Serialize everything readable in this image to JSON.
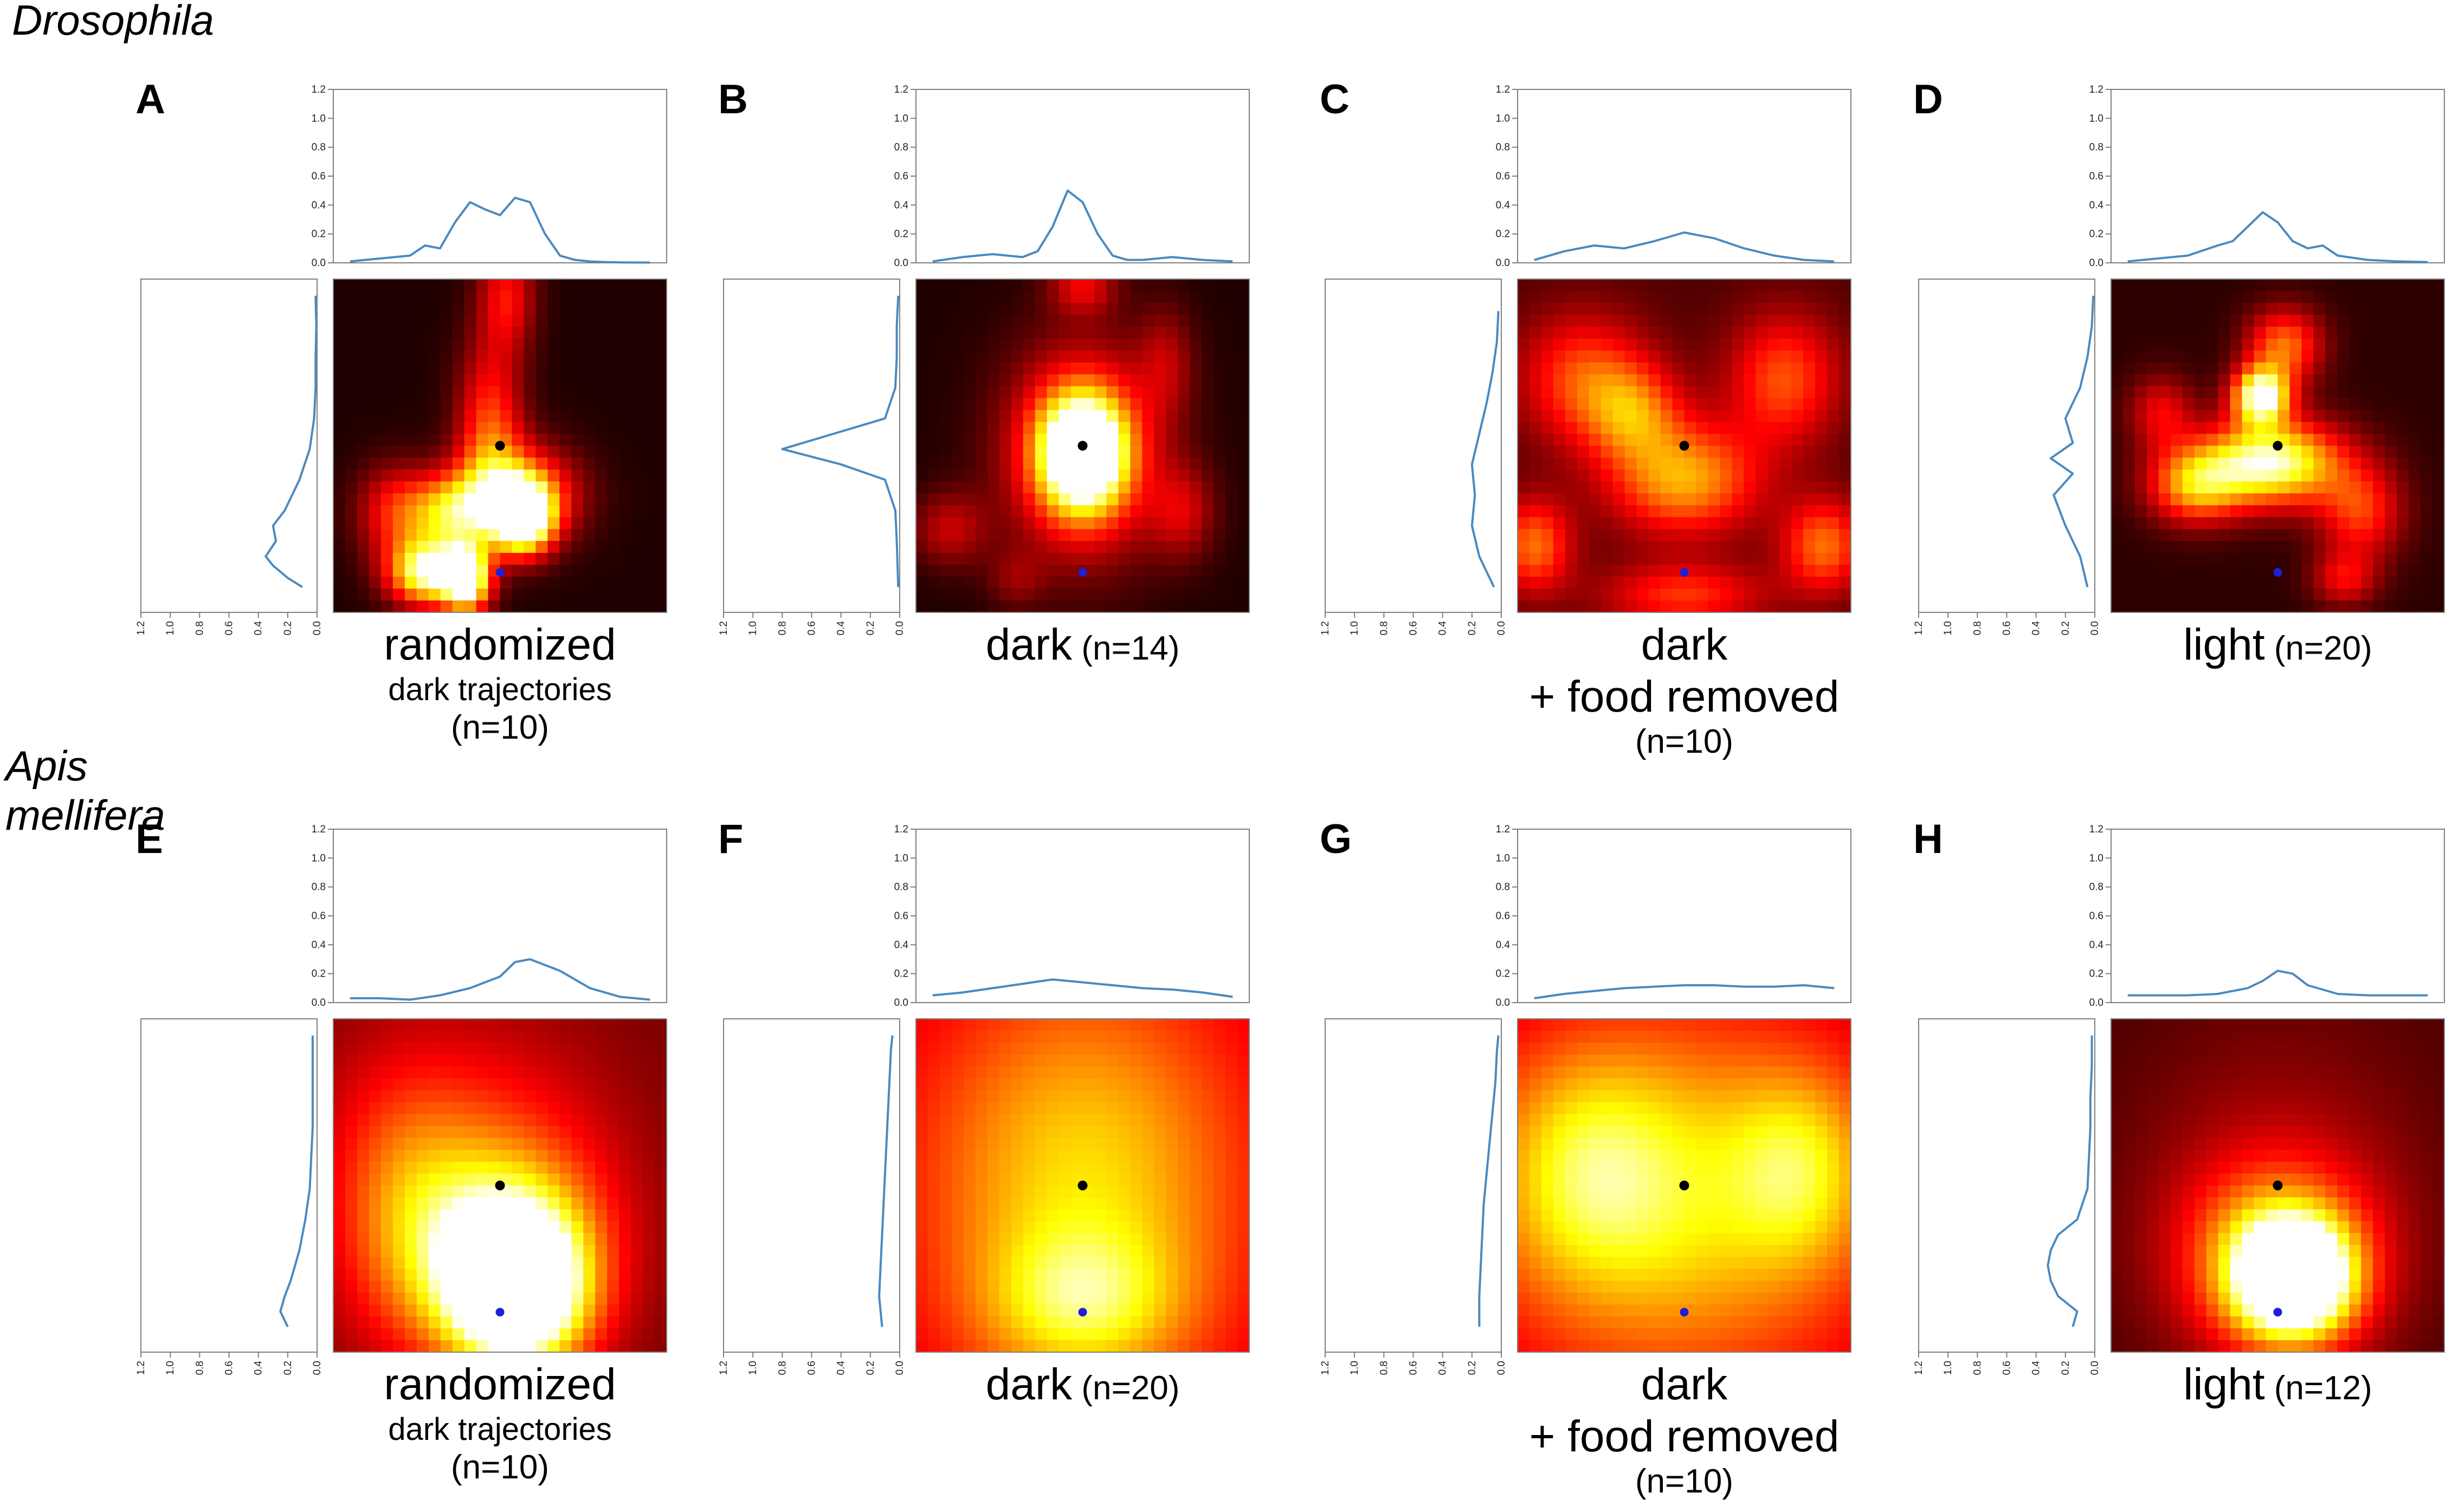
{
  "species": [
    "Drosophila",
    "Apis mellifera"
  ],
  "axis_ticks": [
    "0.0",
    "0.2",
    "0.4",
    "0.6",
    "0.8",
    "1.0",
    "1.2"
  ],
  "colors": {
    "marginal_line": "#4a8ac0",
    "nest_marker": "#000000",
    "feeder_marker": "#1f1fd8",
    "axes_frame": "#7f7f7f"
  },
  "panels": [
    {
      "letter": "A",
      "caption": {
        "main": "randomized",
        "n": "",
        "sub1": "dark trajectories",
        "sub2": "(n=10)"
      }
    },
    {
      "letter": "B",
      "caption": {
        "main": "dark",
        "n": "(n=14)",
        "sub1": "",
        "sub2": ""
      }
    },
    {
      "letter": "C",
      "caption": {
        "main": "dark",
        "n": "",
        "sub1": "+ food removed",
        "sub2": "(n=10)"
      }
    },
    {
      "letter": "D",
      "caption": {
        "main": "light",
        "n": "(n=20)",
        "sub1": "",
        "sub2": ""
      }
    },
    {
      "letter": "E",
      "caption": {
        "main": "randomized",
        "n": "",
        "sub1": "dark trajectories",
        "sub2": "(n=10)"
      }
    },
    {
      "letter": "F",
      "caption": {
        "main": "dark",
        "n": "(n=20)",
        "sub1": "",
        "sub2": ""
      }
    },
    {
      "letter": "G",
      "caption": {
        "main": "dark",
        "n": "",
        "sub1": "+ food removed",
        "sub2": "(n=10)"
      }
    },
    {
      "letter": "H",
      "caption": {
        "main": "light",
        "n": "(n=12)",
        "sub1": "",
        "sub2": ""
      }
    }
  ],
  "chart_data": [
    {
      "type": "heatmap",
      "panel": "A",
      "xlim": [
        0,
        1.2
      ],
      "ylim": [
        0,
        1.2
      ],
      "top_marginal": {
        "x": [
          0,
          0.1,
          0.2,
          0.25,
          0.3,
          0.35,
          0.4,
          0.45,
          0.5,
          0.55,
          0.6,
          0.65,
          0.7,
          0.75,
          0.8,
          0.85,
          0.9,
          1.0
        ],
        "y": [
          0.01,
          0.03,
          0.05,
          0.12,
          0.1,
          0.28,
          0.42,
          0.37,
          0.33,
          0.45,
          0.42,
          0.2,
          0.05,
          0.02,
          0.01,
          0.005,
          0.003,
          0.002
        ]
      },
      "side_marginal": {
        "y": [
          0.05,
          0.08,
          0.12,
          0.15,
          0.2,
          0.25,
          0.3,
          0.4,
          0.5,
          0.6,
          0.7,
          0.8,
          0.9,
          1.0
        ],
        "x": [
          0.1,
          0.2,
          0.3,
          0.35,
          0.28,
          0.3,
          0.22,
          0.12,
          0.05,
          0.02,
          0.01,
          0.01,
          0.005,
          0.01
        ]
      },
      "nest": [
        0.5,
        0.5
      ],
      "feeder": [
        0.5,
        0.12
      ]
    },
    {
      "type": "heatmap",
      "panel": "B",
      "xlim": [
        0,
        1.2
      ],
      "ylim": [
        0,
        1.2
      ],
      "top_marginal": {
        "x": [
          0,
          0.1,
          0.2,
          0.3,
          0.35,
          0.4,
          0.45,
          0.5,
          0.55,
          0.6,
          0.65,
          0.7,
          0.8,
          0.9,
          1.0
        ],
        "y": [
          0.01,
          0.04,
          0.06,
          0.04,
          0.08,
          0.25,
          0.5,
          0.42,
          0.2,
          0.05,
          0.02,
          0.02,
          0.04,
          0.02,
          0.01
        ]
      },
      "side_marginal": {
        "y": [
          0.05,
          0.2,
          0.3,
          0.4,
          0.45,
          0.5,
          0.55,
          0.6,
          0.7,
          0.8,
          0.9,
          1.0
        ],
        "x": [
          0.01,
          0.02,
          0.03,
          0.1,
          0.4,
          0.8,
          0.45,
          0.1,
          0.03,
          0.02,
          0.02,
          0.01
        ]
      },
      "nest": [
        0.5,
        0.5
      ],
      "feeder": [
        0.5,
        0.12
      ]
    },
    {
      "type": "heatmap",
      "panel": "C",
      "xlim": [
        0,
        1.2
      ],
      "ylim": [
        0,
        1.2
      ],
      "top_marginal": {
        "x": [
          0,
          0.1,
          0.2,
          0.3,
          0.4,
          0.5,
          0.6,
          0.7,
          0.8,
          0.9,
          1.0
        ],
        "y": [
          0.02,
          0.08,
          0.12,
          0.1,
          0.15,
          0.21,
          0.17,
          0.1,
          0.05,
          0.02,
          0.01
        ]
      },
      "side_marginal": {
        "y": [
          0.05,
          0.15,
          0.25,
          0.35,
          0.45,
          0.55,
          0.65,
          0.75,
          0.85,
          0.95
        ],
        "x": [
          0.05,
          0.15,
          0.2,
          0.18,
          0.2,
          0.15,
          0.1,
          0.06,
          0.03,
          0.02
        ]
      },
      "nest": [
        0.5,
        0.5
      ],
      "feeder": [
        0.5,
        0.12
      ]
    },
    {
      "type": "heatmap",
      "panel": "D",
      "xlim": [
        0,
        1.2
      ],
      "ylim": [
        0,
        1.2
      ],
      "top_marginal": {
        "x": [
          0,
          0.1,
          0.2,
          0.3,
          0.35,
          0.4,
          0.45,
          0.5,
          0.55,
          0.6,
          0.65,
          0.7,
          0.8,
          0.9,
          1.0
        ],
        "y": [
          0.01,
          0.03,
          0.05,
          0.12,
          0.15,
          0.25,
          0.35,
          0.28,
          0.15,
          0.1,
          0.12,
          0.05,
          0.02,
          0.01,
          0.005
        ]
      },
      "side_marginal": {
        "y": [
          0.05,
          0.15,
          0.25,
          0.35,
          0.42,
          0.47,
          0.52,
          0.6,
          0.7,
          0.8,
          0.9,
          1.0
        ],
        "x": [
          0.05,
          0.1,
          0.2,
          0.28,
          0.15,
          0.3,
          0.15,
          0.2,
          0.1,
          0.05,
          0.02,
          0.01
        ]
      },
      "nest": [
        0.5,
        0.5
      ],
      "feeder": [
        0.5,
        0.12
      ]
    },
    {
      "type": "heatmap",
      "panel": "E",
      "xlim": [
        0,
        1.2
      ],
      "ylim": [
        0,
        1.2
      ],
      "top_marginal": {
        "x": [
          0,
          0.1,
          0.2,
          0.3,
          0.4,
          0.5,
          0.55,
          0.6,
          0.7,
          0.8,
          0.9,
          1.0
        ],
        "y": [
          0.03,
          0.03,
          0.02,
          0.05,
          0.1,
          0.18,
          0.28,
          0.3,
          0.22,
          0.1,
          0.04,
          0.02
        ]
      },
      "side_marginal": {
        "y": [
          0.05,
          0.1,
          0.15,
          0.2,
          0.3,
          0.4,
          0.5,
          0.6,
          0.7,
          0.8,
          0.9,
          1.0
        ],
        "x": [
          0.2,
          0.25,
          0.22,
          0.18,
          0.12,
          0.08,
          0.05,
          0.04,
          0.03,
          0.03,
          0.03,
          0.03
        ]
      },
      "nest": [
        0.5,
        0.5
      ],
      "feeder": [
        0.5,
        0.12
      ]
    },
    {
      "type": "heatmap",
      "panel": "F",
      "xlim": [
        0,
        1.2
      ],
      "ylim": [
        0,
        1.2
      ],
      "top_marginal": {
        "x": [
          0,
          0.1,
          0.2,
          0.3,
          0.4,
          0.5,
          0.6,
          0.7,
          0.8,
          0.9,
          1.0
        ],
        "y": [
          0.05,
          0.07,
          0.1,
          0.13,
          0.16,
          0.14,
          0.12,
          0.1,
          0.09,
          0.07,
          0.04
        ]
      },
      "side_marginal": {
        "y": [
          0.05,
          0.15,
          0.25,
          0.35,
          0.45,
          0.55,
          0.65,
          0.75,
          0.85,
          0.95,
          1.0
        ],
        "x": [
          0.12,
          0.14,
          0.13,
          0.12,
          0.11,
          0.1,
          0.09,
          0.08,
          0.07,
          0.06,
          0.05
        ]
      },
      "nest": [
        0.5,
        0.5
      ],
      "feeder": [
        0.5,
        0.12
      ]
    },
    {
      "type": "heatmap",
      "panel": "G",
      "xlim": [
        0,
        1.2
      ],
      "ylim": [
        0,
        1.2
      ],
      "top_marginal": {
        "x": [
          0,
          0.1,
          0.2,
          0.3,
          0.4,
          0.5,
          0.6,
          0.7,
          0.8,
          0.9,
          1.0
        ],
        "y": [
          0.03,
          0.06,
          0.08,
          0.1,
          0.11,
          0.12,
          0.12,
          0.11,
          0.11,
          0.12,
          0.1
        ]
      },
      "side_marginal": {
        "y": [
          0.05,
          0.15,
          0.25,
          0.35,
          0.45,
          0.55,
          0.65,
          0.75,
          0.85,
          0.95,
          1.0
        ],
        "x": [
          0.15,
          0.15,
          0.14,
          0.13,
          0.12,
          0.1,
          0.08,
          0.06,
          0.04,
          0.03,
          0.02
        ]
      },
      "nest": [
        0.5,
        0.5
      ],
      "feeder": [
        0.5,
        0.12
      ]
    },
    {
      "type": "heatmap",
      "panel": "H",
      "xlim": [
        0,
        1.2
      ],
      "ylim": [
        0,
        1.2
      ],
      "top_marginal": {
        "x": [
          0,
          0.1,
          0.2,
          0.3,
          0.4,
          0.45,
          0.5,
          0.55,
          0.6,
          0.7,
          0.8,
          0.9,
          1.0
        ],
        "y": [
          0.05,
          0.05,
          0.05,
          0.06,
          0.1,
          0.15,
          0.22,
          0.2,
          0.12,
          0.06,
          0.05,
          0.05,
          0.05
        ]
      },
      "side_marginal": {
        "y": [
          0.05,
          0.1,
          0.15,
          0.2,
          0.25,
          0.3,
          0.35,
          0.4,
          0.5,
          0.6,
          0.7,
          0.8,
          0.9,
          1.0
        ],
        "x": [
          0.15,
          0.12,
          0.25,
          0.3,
          0.32,
          0.3,
          0.25,
          0.12,
          0.05,
          0.04,
          0.03,
          0.03,
          0.02,
          0.02
        ]
      },
      "nest": [
        0.5,
        0.5
      ],
      "feeder": [
        0.5,
        0.12
      ]
    }
  ]
}
